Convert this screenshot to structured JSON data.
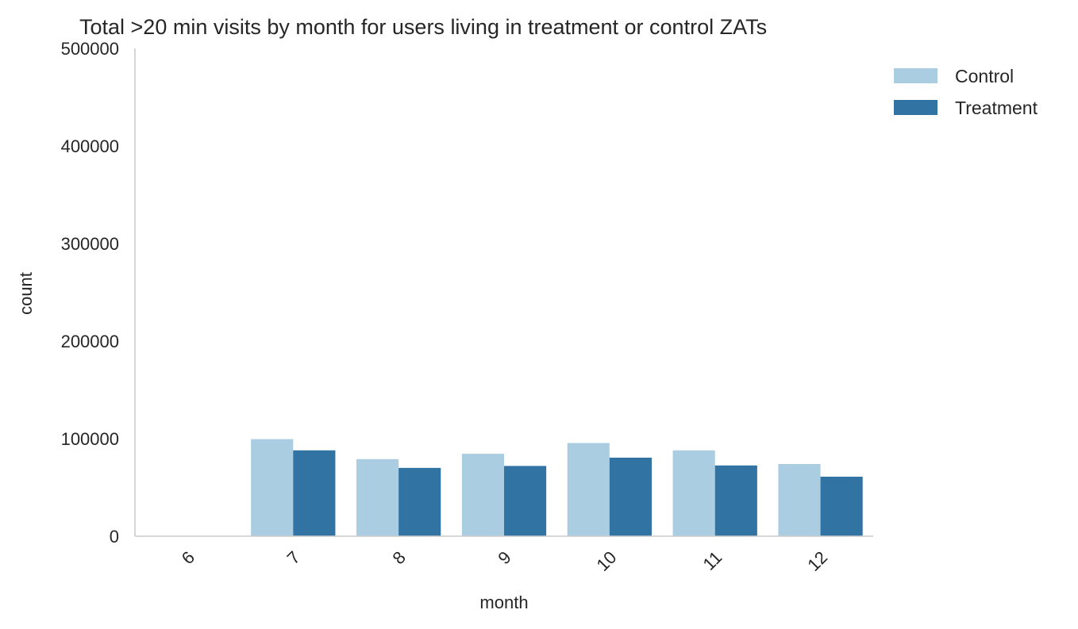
{
  "chart_data": {
    "type": "bar",
    "title": "Total >20 min visits by month for users living in treatment or control ZATs",
    "xlabel": "month",
    "ylabel": "count",
    "categories": [
      "6",
      "7",
      "8",
      "9",
      "10",
      "11",
      "12"
    ],
    "series": [
      {
        "name": "Control",
        "color": "#abcde1",
        "values": [
          0,
          99500,
          79000,
          84500,
          95500,
          88000,
          74000
        ]
      },
      {
        "name": "Treatment",
        "color": "#3173a3",
        "values": [
          0,
          88000,
          70000,
          72000,
          80500,
          72500,
          61000
        ]
      }
    ],
    "ylim": [
      0,
      500000
    ],
    "yticks": [
      "0",
      "100000",
      "200000",
      "300000",
      "400000",
      "500000"
    ],
    "grid": false,
    "legend": "top-right"
  }
}
